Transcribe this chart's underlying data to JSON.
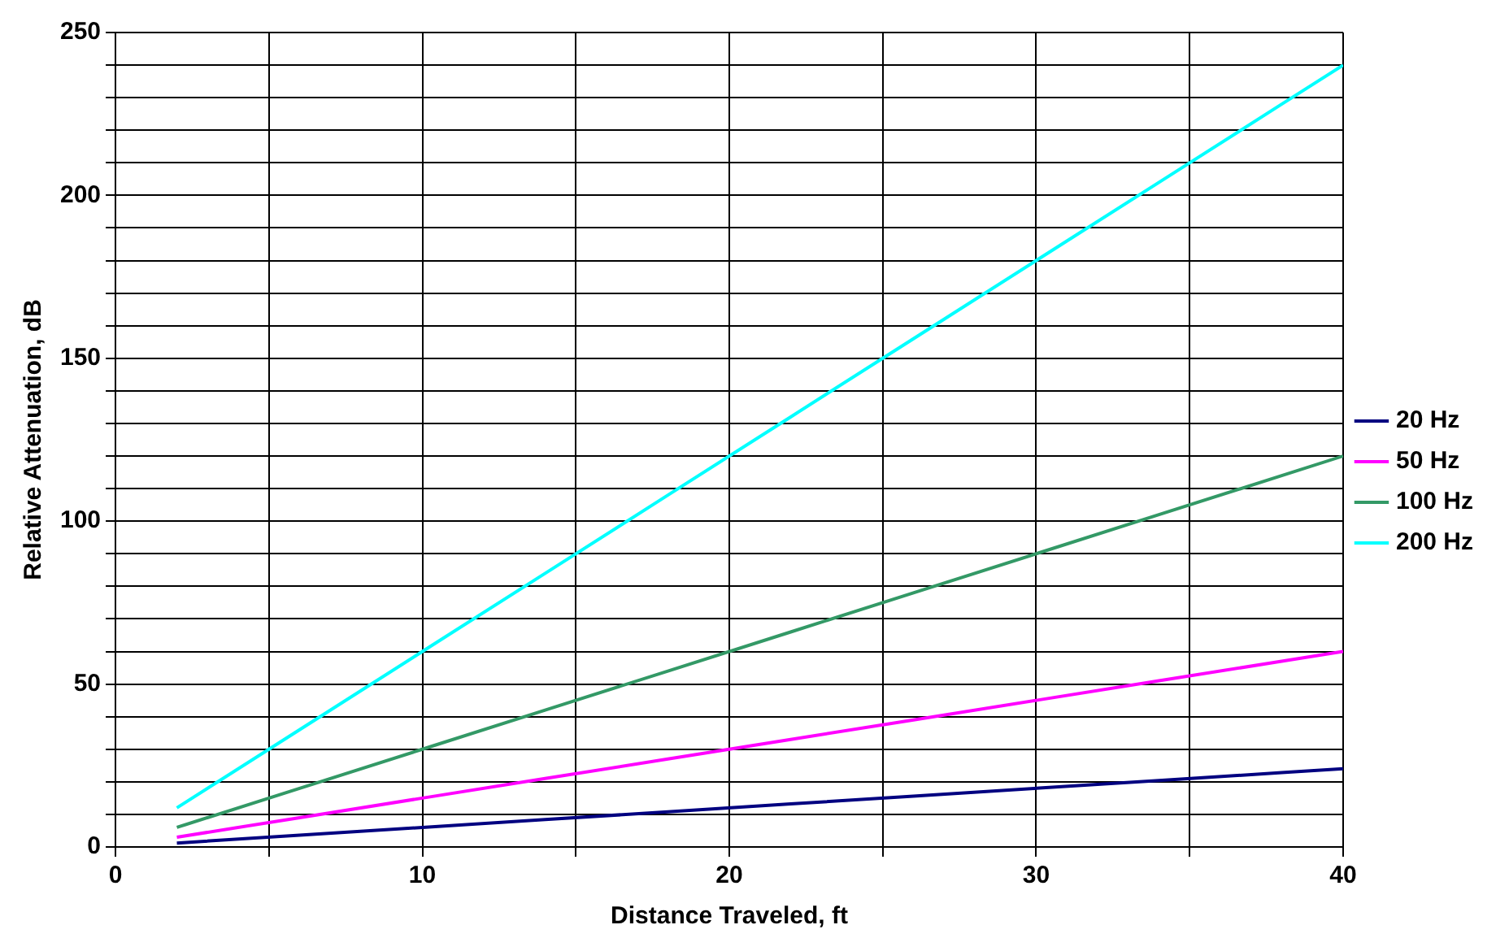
{
  "chart_data": {
    "type": "line",
    "xlabel": "Distance Traveled, ft",
    "ylabel": "Relative Attenuation, dB",
    "x": [
      2,
      6,
      10,
      14,
      18,
      22,
      26,
      30,
      34,
      38,
      40
    ],
    "series": [
      {
        "name": "20 Hz",
        "color": "#000080",
        "values": [
          1.2,
          3.6,
          6,
          8.4,
          10.8,
          13.2,
          15.6,
          18,
          20.4,
          22.8,
          24
        ]
      },
      {
        "name": "50 Hz",
        "color": "#ff00ff",
        "values": [
          3,
          9,
          15,
          21,
          27,
          33,
          39,
          45,
          51,
          57,
          60
        ]
      },
      {
        "name": "100 Hz",
        "color": "#339966",
        "values": [
          6,
          18,
          30,
          42,
          54,
          66,
          78,
          90,
          102,
          114,
          120
        ]
      },
      {
        "name": "200 Hz",
        "color": "#00ffff",
        "values": [
          12,
          36,
          60,
          84,
          108,
          132,
          156,
          180,
          204,
          228,
          240
        ]
      }
    ],
    "xlim": [
      0,
      40
    ],
    "xticks": [
      0,
      {
        "value": 5,
        "label": null
      },
      10,
      {
        "value": 15,
        "label": null
      },
      20,
      {
        "value": 25,
        "label": null
      },
      30,
      {
        "value": 35,
        "label": null
      },
      40
    ],
    "ylim": [
      0,
      250
    ],
    "yticks": [
      0,
      {
        "value": 10,
        "label": null
      },
      {
        "value": 20,
        "label": null
      },
      {
        "value": 30,
        "label": null
      },
      {
        "value": 40,
        "label": null
      },
      50,
      {
        "value": 60,
        "label": null
      },
      {
        "value": 70,
        "label": null
      },
      {
        "value": 80,
        "label": null
      },
      {
        "value": 90,
        "label": null
      },
      100,
      {
        "value": 110,
        "label": null
      },
      {
        "value": 120,
        "label": null
      },
      {
        "value": 130,
        "label": null
      },
      {
        "value": 140,
        "label": null
      },
      150,
      {
        "value": 160,
        "label": null
      },
      {
        "value": 170,
        "label": null
      },
      {
        "value": 180,
        "label": null
      },
      {
        "value": 190,
        "label": null
      },
      200,
      {
        "value": 210,
        "label": null
      },
      {
        "value": 220,
        "label": null
      },
      {
        "value": 230,
        "label": null
      },
      {
        "value": 240,
        "label": null
      },
      250
    ],
    "grid": true,
    "legend": "right",
    "marker": "none",
    "line_style": "solid"
  }
}
